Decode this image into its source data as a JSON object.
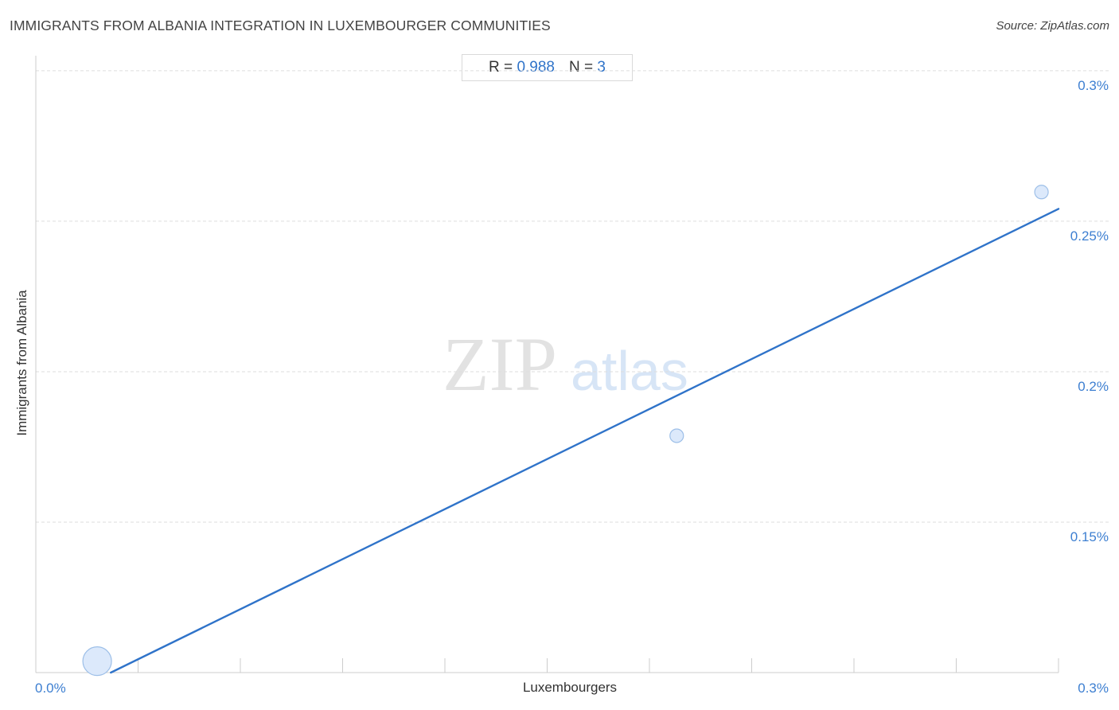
{
  "title": "IMMIGRANTS FROM ALBANIA INTEGRATION IN LUXEMBOURGER COMMUNITIES",
  "source": "Source: ZipAtlas.com",
  "stats": {
    "r_label": "R =",
    "r_value": "0.988",
    "n_label": "N =",
    "n_value": "3"
  },
  "watermark": {
    "zip": "ZIP",
    "atlas": "atlas"
  },
  "colors": {
    "accent": "#2f73c9",
    "point_fill": "#dce9fb",
    "point_stroke": "#9dbfe8",
    "grid": "#dddddd"
  },
  "chart_data": {
    "type": "scatter",
    "title": "IMMIGRANTS FROM ALBANIA INTEGRATION IN LUXEMBOURGER COMMUNITIES",
    "xlabel": "Luxembourgers",
    "ylabel": "Immigrants from Albania",
    "xlim": [
      0.0,
      0.3
    ],
    "ylim": [
      0.1,
      0.305
    ],
    "x_ticks": [
      {
        "value": 0.0,
        "label": "0.0%"
      },
      {
        "value": 0.3,
        "label": "0.3%"
      }
    ],
    "y_ticks": [
      {
        "value": 0.15,
        "label": "0.15%"
      },
      {
        "value": 0.2,
        "label": "0.2%"
      },
      {
        "value": 0.25,
        "label": "0.25%"
      },
      {
        "value": 0.3,
        "label": "0.3%"
      }
    ],
    "grid": true,
    "points": [
      {
        "x": 0.018,
        "y": 0.1038,
        "size": "large"
      },
      {
        "x": 0.188,
        "y": 0.1787,
        "size": "small"
      },
      {
        "x": 0.295,
        "y": 0.2597,
        "size": "small"
      }
    ],
    "trendline": {
      "x": [
        0.022,
        0.3
      ],
      "y": [
        0.1,
        0.2541
      ]
    }
  }
}
